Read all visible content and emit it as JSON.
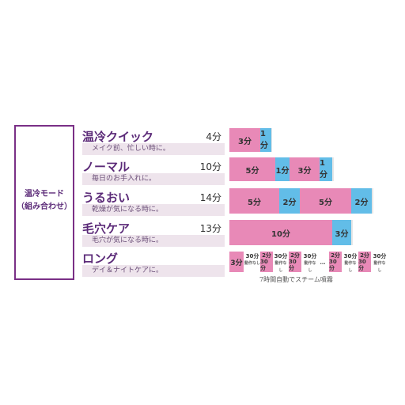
{
  "mode_label": {
    "line1": "温冷モード",
    "line2": "（組み合わせ）"
  },
  "rows": [
    {
      "title": "温冷クイック",
      "subtitle": "メイク前、忙しい時に。",
      "minutes": "4分",
      "segments": [
        {
          "label": "3分",
          "color": "pink"
        },
        {
          "label": "1分",
          "color": "blue"
        }
      ]
    },
    {
      "title": "ノーマル",
      "subtitle": "毎日のお手入れに。",
      "minutes": "10分",
      "segments": [
        {
          "label": "5分",
          "color": "pink"
        },
        {
          "label": "1分",
          "color": "blue"
        },
        {
          "label": "3分",
          "color": "pink"
        },
        {
          "label": "1分",
          "color": "blue"
        }
      ]
    },
    {
      "title": "うるおい",
      "subtitle": "乾燥が気になる時に。",
      "minutes": "14分",
      "segments": [
        {
          "label": "5分",
          "color": "pink"
        },
        {
          "label": "2分",
          "color": "blue"
        },
        {
          "label": "5分",
          "color": "pink"
        },
        {
          "label": "2分",
          "color": "blue"
        }
      ]
    },
    {
      "title": "毛穴ケア",
      "subtitle": "毛穴が気になる時に。",
      "minutes": "13分",
      "segments": [
        {
          "label": "10分",
          "color": "pink"
        },
        {
          "label": "3分",
          "color": "blue"
        }
      ]
    },
    {
      "title": "ロング",
      "subtitle": "デイ＆ナイトケアに。",
      "minutes": "",
      "segments": [
        {
          "label": "3分",
          "color": "pink"
        },
        {
          "label": "30分",
          "sub": "動作なし"
        },
        {
          "label": "2分",
          "color": "pink"
        },
        {
          "label": "30分",
          "sub": "動作なし"
        },
        {
          "label": "2分",
          "color": "pink"
        },
        {
          "label": "30分",
          "sub": "動作なし"
        },
        {
          "label": "2分",
          "color": "pink"
        },
        {
          "label": "30分",
          "sub": "動作なし"
        },
        {
          "label": "2分",
          "color": "pink"
        },
        {
          "label": "30分",
          "sub": "動作なし"
        }
      ]
    }
  ],
  "long_note": "7時間自動でスチーム噴霧",
  "colors": {
    "accent": "#5b2a78",
    "pink": "#e889b7",
    "blue": "#62bde8"
  }
}
